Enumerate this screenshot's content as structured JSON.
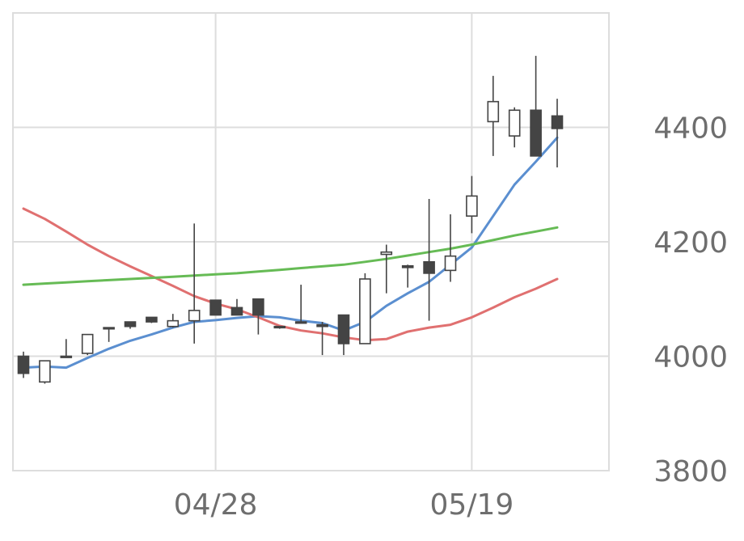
{
  "chart_data": {
    "type": "candlestick",
    "title": "",
    "xlabel": "",
    "ylabel": "",
    "ylim": [
      3800,
      4600
    ],
    "y_ticks": [
      "3800",
      "4000",
      "4200",
      "4400"
    ],
    "x_ticks": [
      {
        "label": "04/28",
        "index": 9
      },
      {
        "label": "05/19",
        "index": 21
      }
    ],
    "grid": true,
    "colors": {
      "up_fill": "#ffffff",
      "down_fill": "#444444",
      "candle_stroke": "#444444",
      "ma_short": "#5b8fd0",
      "ma_mid": "#e07070",
      "ma_long": "#66bb55",
      "grid": "#dddddd",
      "frame": "#dddddd",
      "tick_text": "#6e6e6e"
    },
    "candles": [
      {
        "o": 4000,
        "h": 4008,
        "l": 3962,
        "c": 3970
      },
      {
        "o": 3955,
        "h": 3992,
        "l": 3952,
        "c": 3992
      },
      {
        "o": 3998,
        "h": 4030,
        "l": 3998,
        "c": 4000
      },
      {
        "o": 4005,
        "h": 4038,
        "l": 4002,
        "c": 4038
      },
      {
        "o": 4050,
        "h": 4050,
        "l": 4025,
        "c": 4050
      },
      {
        "o": 4060,
        "h": 4060,
        "l": 4048,
        "c": 4052
      },
      {
        "o": 4068,
        "h": 4068,
        "l": 4058,
        "c": 4060
      },
      {
        "o": 4052,
        "h": 4074,
        "l": 4050,
        "c": 4062
      },
      {
        "o": 4062,
        "h": 4232,
        "l": 4022,
        "c": 4080
      },
      {
        "o": 4098,
        "h": 4098,
        "l": 4072,
        "c": 4072
      },
      {
        "o": 4085,
        "h": 4100,
        "l": 4072,
        "c": 4072
      },
      {
        "o": 4100,
        "h": 4100,
        "l": 4038,
        "c": 4072
      },
      {
        "o": 4052,
        "h": 4052,
        "l": 4048,
        "c": 4050
      },
      {
        "o": 4060,
        "h": 4125,
        "l": 4060,
        "c": 4060
      },
      {
        "o": 4055,
        "h": 4060,
        "l": 4002,
        "c": 4052
      },
      {
        "o": 4072,
        "h": 4072,
        "l": 4002,
        "c": 4022
      },
      {
        "o": 4022,
        "h": 4145,
        "l": 4022,
        "c": 4135
      },
      {
        "o": 4178,
        "h": 4195,
        "l": 4110,
        "c": 4182
      },
      {
        "o": 4158,
        "h": 4160,
        "l": 4120,
        "c": 4155
      },
      {
        "o": 4165,
        "h": 4275,
        "l": 4062,
        "c": 4145
      },
      {
        "o": 4150,
        "h": 4248,
        "l": 4130,
        "c": 4175
      },
      {
        "o": 4245,
        "h": 4315,
        "l": 4215,
        "c": 4280
      },
      {
        "o": 4410,
        "h": 4490,
        "l": 4350,
        "c": 4445
      },
      {
        "o": 4385,
        "h": 4435,
        "l": 4365,
        "c": 4430
      },
      {
        "o": 4430,
        "h": 4525,
        "l": 4350,
        "c": 4350
      },
      {
        "o": 4420,
        "h": 4450,
        "l": 4330,
        "c": 4398
      }
    ],
    "series": [
      {
        "values": [
          3980,
          3982,
          3980,
          3997,
          4013,
          4027,
          4038,
          4050,
          4060,
          4063,
          4067,
          4070,
          4068,
          4062,
          4058,
          4045,
          4060,
          4088,
          4110,
          4130,
          4160,
          4190,
          4245,
          4300,
          4340,
          4382
        ]
      },
      {
        "values": [
          4258,
          4240,
          4218,
          4195,
          4175,
          4157,
          4140,
          4123,
          4105,
          4092,
          4082,
          4068,
          4053,
          4045,
          4040,
          4033,
          4028,
          4030,
          4043,
          4050,
          4055,
          4068,
          4085,
          4103,
          4118,
          4135
        ]
      },
      {
        "values": [
          4125,
          4127,
          4129,
          4131,
          4133,
          4135,
          4137,
          4139,
          4141,
          4143,
          4145,
          4148,
          4151,
          4154,
          4157,
          4160,
          4165,
          4170,
          4176,
          4182,
          4188,
          4195,
          4203,
          4211,
          4218,
          4225
        ]
      }
    ]
  }
}
